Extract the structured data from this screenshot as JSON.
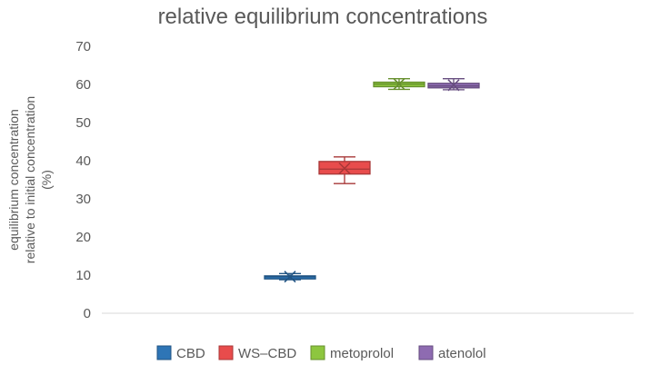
{
  "chart_data": {
    "type": "box",
    "title": "relative equilibrium concentrations",
    "xlabel": "",
    "ylabel_lines": [
      "equilibrium concentration",
      "relative to initial concentration",
      "(%)"
    ],
    "ylim": [
      0,
      70
    ],
    "yticks": [
      0,
      10,
      20,
      30,
      40,
      50,
      60,
      70
    ],
    "grid": false,
    "legend_position": "bottom",
    "series": [
      {
        "name": "CBD",
        "color": "#2E75B6",
        "min": 8.8,
        "q1": 9.0,
        "median": 9.6,
        "q3": 9.8,
        "max": 10.4,
        "mean": 9.6
      },
      {
        "name": "WS–CBD",
        "color": "#E84C4C",
        "min": 34.0,
        "q1": 36.5,
        "median": 37.8,
        "q3": 39.8,
        "max": 41.0,
        "mean": 38.0
      },
      {
        "name": "metoprolol",
        "color": "#8DC63F",
        "min": 58.7,
        "q1": 59.4,
        "median": 60.1,
        "q3": 60.6,
        "max": 61.5,
        "mean": 60.1
      },
      {
        "name": "atenolol",
        "color": "#8E6BB1",
        "min": 58.6,
        "q1": 59.1,
        "median": 59.6,
        "q3": 60.3,
        "max": 61.5,
        "mean": 59.8
      }
    ]
  }
}
